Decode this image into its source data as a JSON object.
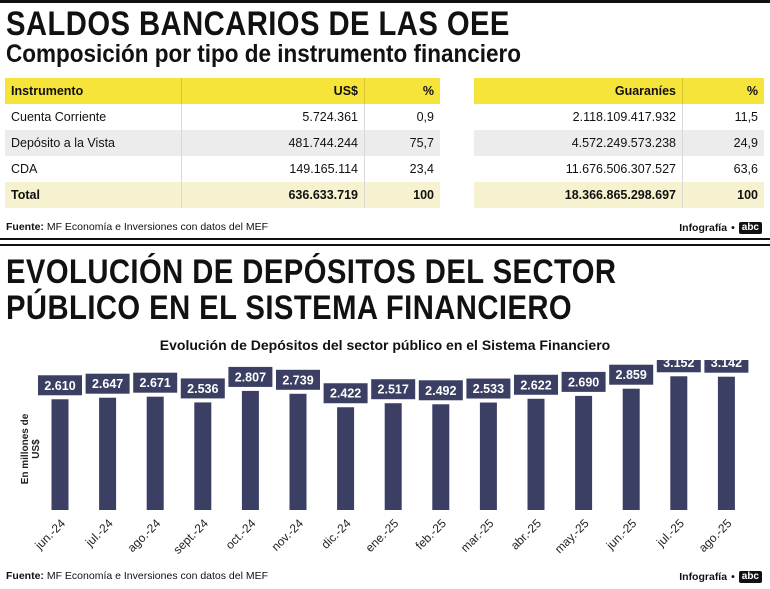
{
  "section1": {
    "title": "SALDOS BANCARIOS DE LAS OEE",
    "subtitle": "Composición por tipo de instrumento financiero"
  },
  "table_usd": {
    "headers": [
      "Instrumento",
      "US$",
      "%"
    ],
    "rows": [
      [
        "Cuenta Corriente",
        "5.724.361",
        "0,9"
      ],
      [
        "Depósito a la Vista",
        "481.744.244",
        "75,7"
      ],
      [
        "CDA",
        "149.165.114",
        "23,4"
      ]
    ],
    "total": [
      "Total",
      "636.633.719",
      "100"
    ]
  },
  "table_gs": {
    "headers": [
      "Guaraníes",
      "%"
    ],
    "rows": [
      [
        "2.118.109.417.932",
        "11,5"
      ],
      [
        "4.572.249.573.238",
        "24,9"
      ],
      [
        "11.676.506.307.527",
        "63,6"
      ]
    ],
    "total": [
      "18.366.865.298.697",
      "100"
    ]
  },
  "source1": {
    "label": "Fuente:",
    "text": "MF Economía e Inversiones con datos del MEF"
  },
  "credit1": {
    "label": "Infografía",
    "logo": "abc"
  },
  "section2": {
    "title_line1": "EVOLUCIÓN DE DEPÓSITOS DEL SECTOR",
    "title_line2": "PÚBLICO EN EL SISTEMA FINANCIERO"
  },
  "source2": {
    "label": "Fuente:",
    "text": "MF Economía e Inversiones con datos del MEF"
  },
  "credit2": {
    "label": "Infografía",
    "logo": "abc"
  },
  "colors": {
    "bar": "#3b3f63",
    "label_bg": "#3b3f63",
    "header_yellow": "#f7e43a"
  },
  "chart_data": {
    "type": "bar",
    "title": "Evolución de Depósitos del sector público en el Sistema Financiero",
    "xlabel": "",
    "ylabel": "En millones de US$",
    "categories": [
      "jun.-24",
      "jul.-24",
      "ago.-24",
      "sept.-24",
      "oct.-24",
      "nov.-24",
      "dic.-24",
      "ene.-25",
      "feb.-25",
      "mar.-25",
      "abr.-25",
      "may.-25",
      "jun.-25",
      "jul.-25",
      "ago.-25"
    ],
    "values": [
      2610,
      2647,
      2671,
      2536,
      2807,
      2739,
      2422,
      2517,
      2492,
      2533,
      2622,
      2690,
      2859,
      3152,
      3142
    ],
    "value_labels": [
      "2.610",
      "2.647",
      "2.671",
      "2.536",
      "2.807",
      "2.739",
      "2.422",
      "2.517",
      "2.492",
      "2.533",
      "2.622",
      "2.690",
      "2.859",
      "3.152",
      "3.142"
    ],
    "ylim": [
      0,
      3300
    ],
    "grid": false,
    "legend": "none"
  }
}
